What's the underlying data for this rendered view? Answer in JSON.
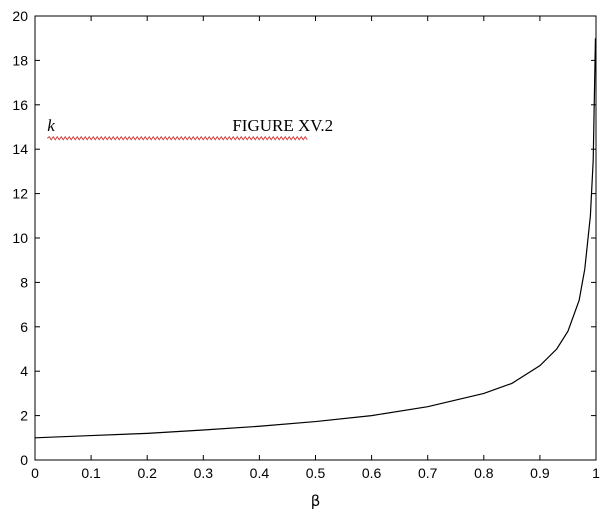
{
  "chart_data": {
    "type": "line",
    "title": "",
    "xlabel": "β",
    "ylabel": "",
    "xlim": [
      0,
      1
    ],
    "ylim": [
      0,
      20
    ],
    "grid": false,
    "x_ticks": [
      "0",
      "0.1",
      "0.2",
      "0.3",
      "0.4",
      "0.5",
      "0.6",
      "0.7",
      "0.8",
      "0.9",
      "1"
    ],
    "y_ticks": [
      "0",
      "2",
      "4",
      "6",
      "8",
      "10",
      "12",
      "14",
      "16",
      "18",
      "20"
    ],
    "annotations": [
      {
        "text": "k",
        "style": "italic",
        "x": 0.02,
        "y": 14.9
      },
      {
        "text": "FIGURE XV.2",
        "style": "normal",
        "x": 0.35,
        "y": 14.9
      }
    ],
    "series": [
      {
        "color": "#000000",
        "x": [
          0,
          0.1,
          0.2,
          0.3,
          0.4,
          0.5,
          0.6,
          0.7,
          0.8,
          0.85,
          0.9,
          0.93,
          0.95,
          0.97,
          0.98,
          0.99,
          0.995,
          0.999
        ],
        "y": [
          1.0,
          1.1,
          1.2,
          1.35,
          1.52,
          1.73,
          2.0,
          2.4,
          3.0,
          3.45,
          4.25,
          5.0,
          5.8,
          7.2,
          8.6,
          11.0,
          13.5,
          19.0
        ]
      }
    ]
  }
}
